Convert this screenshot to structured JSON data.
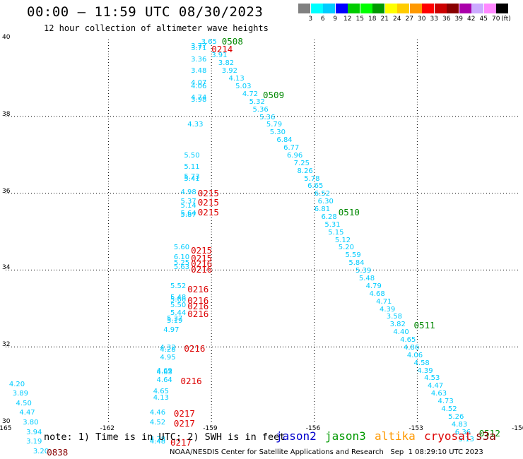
{
  "header": {
    "title": "00:00 – 11:59 UTC 08/30/2023",
    "subtitle": "12 hour collection of altimeter wave heights"
  },
  "color_scale": {
    "unit": "(ft)",
    "ticks": [
      "3",
      "6",
      "9",
      "12",
      "15",
      "18",
      "21",
      "24",
      "27",
      "30",
      "33",
      "36",
      "39",
      "42",
      "45",
      "70"
    ],
    "colors": [
      "#808080",
      "#00ffff",
      "#00ccff",
      "#0000ff",
      "#00cc00",
      "#00ff00",
      "#009900",
      "#ffff00",
      "#ffcc00",
      "#ff9900",
      "#ff0000",
      "#cc0000",
      "#880000",
      "#aa00aa",
      "#ccaaff",
      "#ff88ff",
      "#000000"
    ]
  },
  "map": {
    "lon_ticks": [
      "-165",
      "-162",
      "-159",
      "-156",
      "-153",
      "-150"
    ],
    "lat_ticks": [
      "30",
      "32",
      "34",
      "36",
      "38",
      "40"
    ],
    "lon_range": [
      -165,
      -150
    ],
    "lat_range": [
      30,
      40
    ],
    "grid": "dotted",
    "observations": [
      {
        "lon": -159.3,
        "lat": 39.9,
        "v": "3.65",
        "c": "#00ccff"
      },
      {
        "lon": -159.6,
        "lat": 39.8,
        "v": "3.77",
        "c": "#00ccff"
      },
      {
        "lon": -159.6,
        "lat": 39.75,
        "v": "3.71",
        "c": "#00ccff"
      },
      {
        "lon": -159.0,
        "lat": 39.55,
        "v": "3.91",
        "c": "#00ccff"
      },
      {
        "lon": -159.6,
        "lat": 39.45,
        "v": "3.36",
        "c": "#00ccff"
      },
      {
        "lon": -158.8,
        "lat": 39.35,
        "v": "3.82",
        "c": "#00ccff"
      },
      {
        "lon": -159.6,
        "lat": 39.15,
        "v": "3.48",
        "c": "#00ccff"
      },
      {
        "lon": -158.7,
        "lat": 39.15,
        "v": "3.92",
        "c": "#00ccff"
      },
      {
        "lon": -158.5,
        "lat": 38.95,
        "v": "4.13",
        "c": "#00ccff"
      },
      {
        "lon": -159.6,
        "lat": 38.85,
        "v": "4.07",
        "c": "#00ccff"
      },
      {
        "lon": -159.6,
        "lat": 38.75,
        "v": "4.06",
        "c": "#00ccff"
      },
      {
        "lon": -158.3,
        "lat": 38.75,
        "v": "5.03",
        "c": "#00ccff"
      },
      {
        "lon": -158.1,
        "lat": 38.55,
        "v": "4.72",
        "c": "#00ccff"
      },
      {
        "lon": -159.6,
        "lat": 38.45,
        "v": "4.74",
        "c": "#00ccff"
      },
      {
        "lon": -159.6,
        "lat": 38.4,
        "v": "3.98",
        "c": "#00ccff"
      },
      {
        "lon": -157.9,
        "lat": 38.35,
        "v": "5.32",
        "c": "#00ccff"
      },
      {
        "lon": -157.8,
        "lat": 38.15,
        "v": "5.36",
        "c": "#00ccff"
      },
      {
        "lon": -157.6,
        "lat": 37.95,
        "v": "5.36",
        "c": "#00ccff"
      },
      {
        "lon": -159.7,
        "lat": 37.75,
        "v": "4.33",
        "c": "#00ccff"
      },
      {
        "lon": -157.4,
        "lat": 37.75,
        "v": "5.79",
        "c": "#00ccff"
      },
      {
        "lon": -157.3,
        "lat": 37.55,
        "v": "5.30",
        "c": "#00ccff"
      },
      {
        "lon": -157.1,
        "lat": 37.35,
        "v": "6.84",
        "c": "#00ccff"
      },
      {
        "lon": -156.9,
        "lat": 37.15,
        "v": "6.77",
        "c": "#00ccff"
      },
      {
        "lon": -159.8,
        "lat": 36.95,
        "v": "5.50",
        "c": "#00ccff"
      },
      {
        "lon": -156.8,
        "lat": 36.95,
        "v": "6.96",
        "c": "#00ccff"
      },
      {
        "lon": -156.6,
        "lat": 36.75,
        "v": "7.25",
        "c": "#00ccff"
      },
      {
        "lon": -159.8,
        "lat": 36.65,
        "v": "5.11",
        "c": "#00ccff"
      },
      {
        "lon": -156.5,
        "lat": 36.55,
        "v": "8.26",
        "c": "#00ccff"
      },
      {
        "lon": -159.8,
        "lat": 36.4,
        "v": "5.73",
        "c": "#00ccff"
      },
      {
        "lon": -159.8,
        "lat": 36.35,
        "v": "5.41",
        "c": "#00ccff"
      },
      {
        "lon": -156.3,
        "lat": 36.35,
        "v": "5.78",
        "c": "#00ccff"
      },
      {
        "lon": -156.2,
        "lat": 36.15,
        "v": "6.65",
        "c": "#00ccff"
      },
      {
        "lon": -159.9,
        "lat": 36.0,
        "v": "4.98",
        "c": "#00ccff"
      },
      {
        "lon": -156.0,
        "lat": 35.95,
        "v": "6.52",
        "c": "#00ccff"
      },
      {
        "lon": -159.9,
        "lat": 35.75,
        "v": "5.37",
        "c": "#00ccff"
      },
      {
        "lon": -155.9,
        "lat": 35.75,
        "v": "6.30",
        "c": "#00ccff"
      },
      {
        "lon": -159.9,
        "lat": 35.65,
        "v": "5.14",
        "c": "#00ccff"
      },
      {
        "lon": -156.0,
        "lat": 35.55,
        "v": "6.81",
        "c": "#00ccff"
      },
      {
        "lon": -159.9,
        "lat": 35.45,
        "v": "5.64",
        "c": "#00ccff"
      },
      {
        "lon": -159.9,
        "lat": 35.4,
        "v": "5.87",
        "c": "#00ccff"
      },
      {
        "lon": -155.8,
        "lat": 35.35,
        "v": "6.28",
        "c": "#00ccff"
      },
      {
        "lon": -155.7,
        "lat": 35.15,
        "v": "5.31",
        "c": "#00ccff"
      },
      {
        "lon": -155.6,
        "lat": 34.95,
        "v": "5.15",
        "c": "#00ccff"
      },
      {
        "lon": -155.4,
        "lat": 34.75,
        "v": "5.12",
        "c": "#00ccff"
      },
      {
        "lon": -160.1,
        "lat": 34.55,
        "v": "5.60",
        "c": "#00ccff"
      },
      {
        "lon": -155.3,
        "lat": 34.55,
        "v": "5.20",
        "c": "#00ccff"
      },
      {
        "lon": -160.1,
        "lat": 34.3,
        "v": "6.10",
        "c": "#00ccff"
      },
      {
        "lon": -155.1,
        "lat": 34.35,
        "v": "5.59",
        "c": "#00ccff"
      },
      {
        "lon": -160.1,
        "lat": 34.15,
        "v": "5.25",
        "c": "#00ccff"
      },
      {
        "lon": -155.0,
        "lat": 34.15,
        "v": "5.84",
        "c": "#00ccff"
      },
      {
        "lon": -160.1,
        "lat": 34.05,
        "v": "5.63",
        "c": "#00ccff"
      },
      {
        "lon": -154.8,
        "lat": 33.95,
        "v": "5.39",
        "c": "#00ccff"
      },
      {
        "lon": -154.7,
        "lat": 33.75,
        "v": "5.48",
        "c": "#00ccff"
      },
      {
        "lon": -160.2,
        "lat": 33.55,
        "v": "5.52",
        "c": "#00ccff"
      },
      {
        "lon": -154.5,
        "lat": 33.55,
        "v": "4.79",
        "c": "#00ccff"
      },
      {
        "lon": -154.4,
        "lat": 33.35,
        "v": "4.68",
        "c": "#00ccff"
      },
      {
        "lon": -160.2,
        "lat": 33.25,
        "v": "5.48",
        "c": "#00ccff"
      },
      {
        "lon": -160.2,
        "lat": 33.2,
        "v": "5.66",
        "c": "#00ccff"
      },
      {
        "lon": -160.2,
        "lat": 33.05,
        "v": "5.50",
        "c": "#00ccff"
      },
      {
        "lon": -154.2,
        "lat": 33.15,
        "v": "4.71",
        "c": "#00ccff"
      },
      {
        "lon": -160.2,
        "lat": 32.85,
        "v": "5.44",
        "c": "#00ccff"
      },
      {
        "lon": -154.1,
        "lat": 32.95,
        "v": "4.39",
        "c": "#00ccff"
      },
      {
        "lon": -160.3,
        "lat": 32.7,
        "v": "5.37",
        "c": "#00ccff"
      },
      {
        "lon": -160.3,
        "lat": 32.65,
        "v": "5.19",
        "c": "#00ccff"
      },
      {
        "lon": -153.9,
        "lat": 32.75,
        "v": "3.58",
        "c": "#00ccff"
      },
      {
        "lon": -153.8,
        "lat": 32.55,
        "v": "3.82",
        "c": "#00ccff"
      },
      {
        "lon": -160.4,
        "lat": 32.4,
        "v": "4.97",
        "c": "#00ccff"
      },
      {
        "lon": -153.7,
        "lat": 32.35,
        "v": "4.40",
        "c": "#00ccff"
      },
      {
        "lon": -153.5,
        "lat": 32.15,
        "v": "4.65",
        "c": "#00ccff"
      },
      {
        "lon": -160.5,
        "lat": 31.95,
        "v": "4.32",
        "c": "#00ccff"
      },
      {
        "lon": -160.5,
        "lat": 31.9,
        "v": "4.28",
        "c": "#00ccff"
      },
      {
        "lon": -153.4,
        "lat": 31.95,
        "v": "4.86",
        "c": "#00ccff"
      },
      {
        "lon": -160.5,
        "lat": 31.7,
        "v": "4.95",
        "c": "#00ccff"
      },
      {
        "lon": -153.3,
        "lat": 31.75,
        "v": "4.06",
        "c": "#00ccff"
      },
      {
        "lon": -153.1,
        "lat": 31.55,
        "v": "4.58",
        "c": "#00ccff"
      },
      {
        "lon": -160.6,
        "lat": 31.35,
        "v": "4.69",
        "c": "#00ccff"
      },
      {
        "lon": -160.6,
        "lat": 31.3,
        "v": "4.63",
        "c": "#00ccff"
      },
      {
        "lon": -153.0,
        "lat": 31.35,
        "v": "4.39",
        "c": "#00ccff"
      },
      {
        "lon": -160.6,
        "lat": 31.1,
        "v": "4.64",
        "c": "#00ccff"
      },
      {
        "lon": -152.8,
        "lat": 31.15,
        "v": "4.53",
        "c": "#00ccff"
      },
      {
        "lon": -152.7,
        "lat": 30.95,
        "v": "4.47",
        "c": "#00ccff"
      },
      {
        "lon": -160.7,
        "lat": 30.8,
        "v": "4.65",
        "c": "#00ccff"
      },
      {
        "lon": -152.6,
        "lat": 30.75,
        "v": "4.63",
        "c": "#00ccff"
      },
      {
        "lon": -160.7,
        "lat": 30.65,
        "v": "4.13",
        "c": "#00ccff"
      },
      {
        "lon": -152.4,
        "lat": 30.55,
        "v": "4.73",
        "c": "#00ccff"
      },
      {
        "lon": -152.3,
        "lat": 30.35,
        "v": "4.52",
        "c": "#00ccff"
      },
      {
        "lon": -160.8,
        "lat": 30.25,
        "v": "4.46",
        "c": "#00ccff"
      },
      {
        "lon": -152.1,
        "lat": 30.15,
        "v": "5.26",
        "c": "#00ccff"
      },
      {
        "lon": -160.8,
        "lat": 30.0,
        "v": "4.52",
        "c": "#00ccff"
      },
      {
        "lon": -152.0,
        "lat": 29.95,
        "v": "4.83",
        "c": "#00ccff"
      },
      {
        "lon": -151.9,
        "lat": 29.75,
        "v": "6.36",
        "c": "#00ccff"
      },
      {
        "lon": -160.8,
        "lat": 29.55,
        "v": "4.78",
        "c": "#00ccff"
      },
      {
        "lon": -160.8,
        "lat": 29.5,
        "v": "4.48",
        "c": "#00ccff"
      },
      {
        "lon": -151.8,
        "lat": 29.55,
        "v": "5.13",
        "c": "#00ccff"
      },
      {
        "lon": -164.9,
        "lat": 31.0,
        "v": "4.20",
        "c": "#00ccff"
      },
      {
        "lon": -164.8,
        "lat": 30.75,
        "v": "3.89",
        "c": "#00ccff"
      },
      {
        "lon": -164.7,
        "lat": 30.5,
        "v": "4.50",
        "c": "#00ccff"
      },
      {
        "lon": -164.6,
        "lat": 30.25,
        "v": "4.47",
        "c": "#00ccff"
      },
      {
        "lon": -164.5,
        "lat": 30.0,
        "v": "3.80",
        "c": "#00ccff"
      },
      {
        "lon": -164.4,
        "lat": 29.75,
        "v": "3.94",
        "c": "#00ccff"
      },
      {
        "lon": -164.4,
        "lat": 29.5,
        "v": "3.19",
        "c": "#00ccff"
      },
      {
        "lon": -164.2,
        "lat": 29.25,
        "v": "3.20",
        "c": "#00ccff"
      }
    ],
    "track_labels": [
      {
        "lon": -158.7,
        "lat": 39.95,
        "v": "0508",
        "c": "#008800"
      },
      {
        "lon": -159.0,
        "lat": 39.75,
        "v": "0214",
        "c": "#dd0000"
      },
      {
        "lon": -157.5,
        "lat": 38.55,
        "v": "0509",
        "c": "#008800"
      },
      {
        "lon": -159.4,
        "lat": 36.0,
        "v": "0215",
        "c": "#dd0000"
      },
      {
        "lon": -159.4,
        "lat": 35.75,
        "v": "0215",
        "c": "#dd0000"
      },
      {
        "lon": -159.4,
        "lat": 35.5,
        "v": "0215",
        "c": "#dd0000"
      },
      {
        "lon": -155.3,
        "lat": 35.5,
        "v": "0510",
        "c": "#008800"
      },
      {
        "lon": -159.6,
        "lat": 34.5,
        "v": "0215",
        "c": "#dd0000"
      },
      {
        "lon": -159.6,
        "lat": 34.3,
        "v": "0215",
        "c": "#dd0000"
      },
      {
        "lon": -159.6,
        "lat": 34.15,
        "v": "0216",
        "c": "#dd0000"
      },
      {
        "lon": -159.6,
        "lat": 34.0,
        "v": "0216",
        "c": "#dd0000"
      },
      {
        "lon": -159.7,
        "lat": 33.5,
        "v": "0216",
        "c": "#dd0000"
      },
      {
        "lon": -159.7,
        "lat": 33.2,
        "v": "0216",
        "c": "#dd0000"
      },
      {
        "lon": -159.7,
        "lat": 33.05,
        "v": "0216",
        "c": "#dd0000"
      },
      {
        "lon": -159.7,
        "lat": 32.85,
        "v": "0216",
        "c": "#dd0000"
      },
      {
        "lon": -153.1,
        "lat": 32.55,
        "v": "0511",
        "c": "#008800"
      },
      {
        "lon": -159.8,
        "lat": 31.95,
        "v": "0216",
        "c": "#dd0000"
      },
      {
        "lon": -159.9,
        "lat": 31.1,
        "v": "0216",
        "c": "#dd0000"
      },
      {
        "lon": -160.1,
        "lat": 30.25,
        "v": "0217",
        "c": "#dd0000"
      },
      {
        "lon": -160.1,
        "lat": 30.0,
        "v": "0217",
        "c": "#dd0000"
      },
      {
        "lon": -160.2,
        "lat": 29.5,
        "v": "0217",
        "c": "#dd0000"
      },
      {
        "lon": -151.2,
        "lat": 29.75,
        "v": "0512",
        "c": "#008800"
      },
      {
        "lon": -163.8,
        "lat": 29.25,
        "v": "0838",
        "c": "#880000"
      }
    ]
  },
  "footer": {
    "note": "note: 1) Time is in UTC; 2) SWH is in feet",
    "satellites": [
      {
        "name": "jason2",
        "color": "#0000cc"
      },
      {
        "name": "jason3",
        "color": "#009900"
      },
      {
        "name": "altika",
        "color": "#ff9900"
      },
      {
        "name": "cryosat",
        "color": "#dd0000"
      },
      {
        "name": "s3a",
        "color": "#880000"
      }
    ],
    "credit": "NOAA/NESDIS Center for Satellite Applications and Research   Sep  1 08:29:10 UTC 2023"
  }
}
